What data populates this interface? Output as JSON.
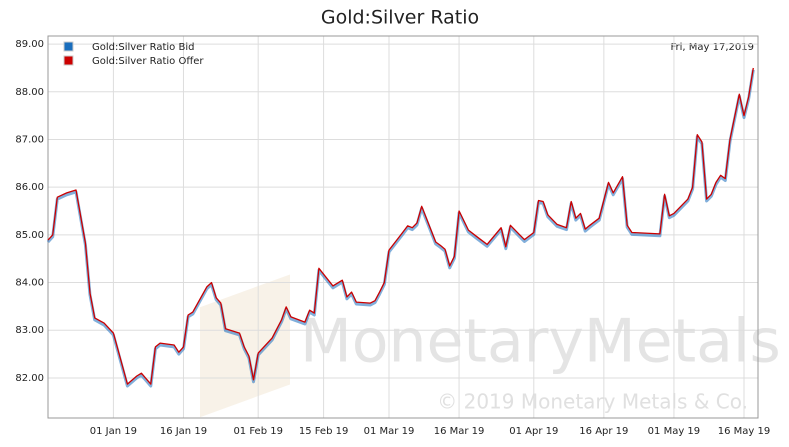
{
  "chart_data": {
    "type": "line",
    "title": "Gold:Silver Ratio",
    "date_note": "Fri, May 17,2019",
    "watermark": "MonetaryMetals",
    "copyright": "© 2019 Monetary Metals & Co.",
    "legend": "top-left",
    "grid": true,
    "x": [
      "2018-12-18",
      "2018-12-19",
      "2018-12-20",
      "2018-12-22",
      "2018-12-24",
      "2018-12-26",
      "2018-12-27",
      "2018-12-28",
      "2018-12-30",
      "2019-01-01",
      "2019-01-04",
      "2019-01-06",
      "2019-01-07",
      "2019-01-09",
      "2019-01-10",
      "2019-01-11",
      "2019-01-14",
      "2019-01-15",
      "2019-01-16",
      "2019-01-17",
      "2019-01-18",
      "2019-01-21",
      "2019-01-22",
      "2019-01-23",
      "2019-01-24",
      "2019-01-25",
      "2019-01-28",
      "2019-01-29",
      "2019-01-30",
      "2019-01-31",
      "2019-02-01",
      "2019-02-04",
      "2019-02-05",
      "2019-02-06",
      "2019-02-07",
      "2019-02-08",
      "2019-02-11",
      "2019-02-12",
      "2019-02-13",
      "2019-02-14",
      "2019-02-17",
      "2019-02-19",
      "2019-02-20",
      "2019-02-21",
      "2019-02-22",
      "2019-02-25",
      "2019-02-26",
      "2019-02-27",
      "2019-02-28",
      "2019-03-01",
      "2019-03-04",
      "2019-03-05",
      "2019-03-06",
      "2019-03-07",
      "2019-03-08",
      "2019-03-11",
      "2019-03-12",
      "2019-03-13",
      "2019-03-14",
      "2019-03-15",
      "2019-03-16",
      "2019-03-18",
      "2019-03-20",
      "2019-03-22",
      "2019-03-25",
      "2019-03-26",
      "2019-03-27",
      "2019-03-29",
      "2019-03-30",
      "2019-04-01",
      "2019-04-02",
      "2019-04-03",
      "2019-04-04",
      "2019-04-06",
      "2019-04-08",
      "2019-04-09",
      "2019-04-10",
      "2019-04-11",
      "2019-04-12",
      "2019-04-13",
      "2019-04-15",
      "2019-04-17",
      "2019-04-18",
      "2019-04-20",
      "2019-04-21",
      "2019-04-22",
      "2019-04-28",
      "2019-04-29",
      "2019-04-30",
      "2019-05-01",
      "2019-05-04",
      "2019-05-05",
      "2019-05-06",
      "2019-05-07",
      "2019-05-08",
      "2019-05-09",
      "2019-05-10",
      "2019-05-11",
      "2019-05-12",
      "2019-05-13",
      "2019-05-15",
      "2019-05-16",
      "2019-05-17",
      "2019-05-18"
    ],
    "series": [
      {
        "name": "Gold:Silver Ratio Bid",
        "color": "#1a6ebd",
        "values": [
          84.85,
          84.96,
          85.75,
          85.84,
          85.9,
          84.79,
          83.74,
          83.22,
          83.11,
          82.9,
          81.83,
          82,
          82.06,
          81.83,
          82.61,
          82.69,
          82.65,
          82.5,
          82.61,
          83.28,
          83.34,
          83.87,
          83.96,
          83.64,
          83.53,
          82.99,
          82.9,
          82.61,
          82.42,
          81.92,
          82.48,
          82.8,
          82.99,
          83.18,
          83.45,
          83.24,
          83.13,
          83.38,
          83.32,
          84.26,
          83.89,
          84.01,
          83.66,
          83.76,
          83.55,
          83.53,
          83.58,
          83.76,
          83.96,
          84.64,
          85.02,
          85.15,
          85.11,
          85.21,
          85.56,
          84.81,
          84.74,
          84.66,
          84.31,
          84.51,
          85.46,
          85.06,
          84.91,
          84.76,
          85.11,
          84.71,
          85.16,
          84.96,
          84.86,
          85.01,
          85.68,
          85.66,
          85.38,
          85.18,
          85.11,
          85.66,
          85.31,
          85.41,
          85.08,
          85.16,
          85.31,
          86.06,
          85.84,
          86.18,
          85.16,
          85.01,
          84.98,
          85.81,
          85.36,
          85.41,
          85.71,
          85.96,
          87.06,
          86.91,
          85.71,
          85.81,
          86.06,
          86.21,
          86.14,
          86.96,
          87.91,
          87.46,
          87.86,
          88.46
        ]
      },
      {
        "name": "Gold:Silver Ratio Offer",
        "color": "#cc0000",
        "values": [
          84.89,
          85,
          85.79,
          85.88,
          85.94,
          84.83,
          83.78,
          83.26,
          83.15,
          82.94,
          81.87,
          82.04,
          82.1,
          81.87,
          82.65,
          82.73,
          82.69,
          82.54,
          82.65,
          83.32,
          83.38,
          83.91,
          84,
          83.68,
          83.57,
          83.03,
          82.94,
          82.65,
          82.46,
          81.96,
          82.52,
          82.84,
          83.03,
          83.22,
          83.49,
          83.28,
          83.17,
          83.42,
          83.36,
          84.3,
          83.93,
          84.05,
          83.7,
          83.8,
          83.59,
          83.57,
          83.62,
          83.8,
          84,
          84.68,
          85.06,
          85.19,
          85.15,
          85.25,
          85.6,
          84.85,
          84.78,
          84.7,
          84.35,
          84.55,
          85.5,
          85.1,
          84.95,
          84.8,
          85.15,
          84.75,
          85.2,
          85,
          84.9,
          85.05,
          85.72,
          85.7,
          85.42,
          85.22,
          85.15,
          85.7,
          85.35,
          85.45,
          85.12,
          85.2,
          85.35,
          86.1,
          85.88,
          86.22,
          85.2,
          85.05,
          85.02,
          85.85,
          85.4,
          85.45,
          85.75,
          86,
          87.1,
          86.95,
          85.75,
          85.85,
          86.1,
          86.25,
          86.18,
          87,
          87.95,
          87.5,
          87.9,
          88.5
        ]
      }
    ],
    "xlim": [
      "2018-12-18",
      "2019-05-19"
    ],
    "xticks": [
      {
        "value": "2019-01-01",
        "label": "01 Jan 19"
      },
      {
        "value": "2019-01-16",
        "label": "16 Jan 19"
      },
      {
        "value": "2019-02-01",
        "label": "01 Feb 19"
      },
      {
        "value": "2019-02-15",
        "label": "15 Feb 19"
      },
      {
        "value": "2019-03-01",
        "label": "01 Mar 19"
      },
      {
        "value": "2019-03-16",
        "label": "16 Mar 19"
      },
      {
        "value": "2019-04-01",
        "label": "01 Apr 19"
      },
      {
        "value": "2019-04-16",
        "label": "16 Apr 19"
      },
      {
        "value": "2019-05-01",
        "label": "01 May 19"
      },
      {
        "value": "2019-05-16",
        "label": "16 May 19"
      }
    ],
    "ylim": [
      81.16,
      89.17
    ],
    "yticks": [
      {
        "value": 82,
        "label": "82.00"
      },
      {
        "value": 83,
        "label": "83.00"
      },
      {
        "value": 84,
        "label": "84.00"
      },
      {
        "value": 85,
        "label": "85.00"
      },
      {
        "value": 86,
        "label": "86.00"
      },
      {
        "value": 87,
        "label": "87.00"
      },
      {
        "value": 88,
        "label": "88.00"
      },
      {
        "value": 89,
        "label": "89.00"
      }
    ]
  }
}
